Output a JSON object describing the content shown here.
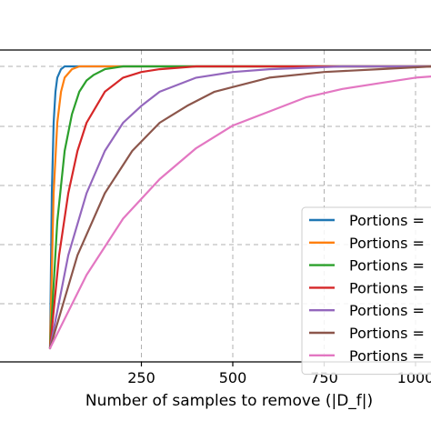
{
  "chart_data": {
    "type": "line",
    "title": "",
    "xlabel": "Number of samples to remove (|D_f|)",
    "ylabel": "",
    "xlim": [
      -20,
      1200
    ],
    "ylim": [
      0,
      1.05
    ],
    "x_ticks": [
      250,
      500,
      750,
      1000
    ],
    "x_tick_labels": [
      "250",
      "500",
      "750",
      "1000"
    ],
    "grid": true,
    "legend_placement": "lower-right",
    "series": [
      {
        "name": "Portions =",
        "color": "#1f77b4",
        "x": [
          0,
          5,
          10,
          15,
          20,
          30,
          40,
          60,
          100,
          1200
        ],
        "y": [
          0.0,
          0.55,
          0.8,
          0.91,
          0.96,
          0.99,
          1.0,
          1.0,
          1.0,
          1.0
        ]
      },
      {
        "name": "Portions =",
        "color": "#ff7f0e",
        "x": [
          0,
          10,
          20,
          30,
          40,
          60,
          80,
          100,
          150,
          1200
        ],
        "y": [
          0.0,
          0.55,
          0.8,
          0.91,
          0.96,
          0.99,
          1.0,
          1.0,
          1.0,
          1.0
        ]
      },
      {
        "name": "Portions =",
        "color": "#2ca02c",
        "x": [
          0,
          20,
          40,
          60,
          80,
          100,
          120,
          150,
          200,
          300,
          1200
        ],
        "y": [
          0.0,
          0.45,
          0.7,
          0.83,
          0.91,
          0.95,
          0.97,
          0.99,
          1.0,
          1.0,
          1.0
        ]
      },
      {
        "name": "Portions =",
        "color": "#d62728",
        "x": [
          0,
          25,
          50,
          75,
          100,
          150,
          200,
          250,
          300,
          400,
          500,
          1200
        ],
        "y": [
          0.0,
          0.33,
          0.55,
          0.7,
          0.8,
          0.91,
          0.96,
          0.98,
          0.99,
          1.0,
          1.0,
          1.0
        ]
      },
      {
        "name": "Portions =",
        "color": "#9467bd",
        "x": [
          0,
          50,
          100,
          150,
          200,
          250,
          300,
          400,
          500,
          600,
          800,
          1000,
          1200
        ],
        "y": [
          0.0,
          0.33,
          0.55,
          0.7,
          0.8,
          0.86,
          0.91,
          0.96,
          0.98,
          0.99,
          1.0,
          1.0,
          1.0
        ]
      },
      {
        "name": "Portions =",
        "color": "#8c564b",
        "x": [
          0,
          75,
          150,
          225,
          300,
          375,
          450,
          600,
          750,
          900,
          1050,
          1200
        ],
        "y": [
          0.0,
          0.33,
          0.55,
          0.7,
          0.8,
          0.86,
          0.91,
          0.96,
          0.98,
          0.99,
          1.0,
          1.0
        ]
      },
      {
        "name": "Portions =",
        "color": "#e377c2",
        "x": [
          0,
          100,
          200,
          300,
          400,
          500,
          600,
          700,
          800,
          900,
          1000,
          1100,
          1200
        ],
        "y": [
          0.0,
          0.26,
          0.46,
          0.6,
          0.71,
          0.79,
          0.84,
          0.89,
          0.92,
          0.94,
          0.96,
          0.97,
          0.98
        ]
      }
    ]
  }
}
